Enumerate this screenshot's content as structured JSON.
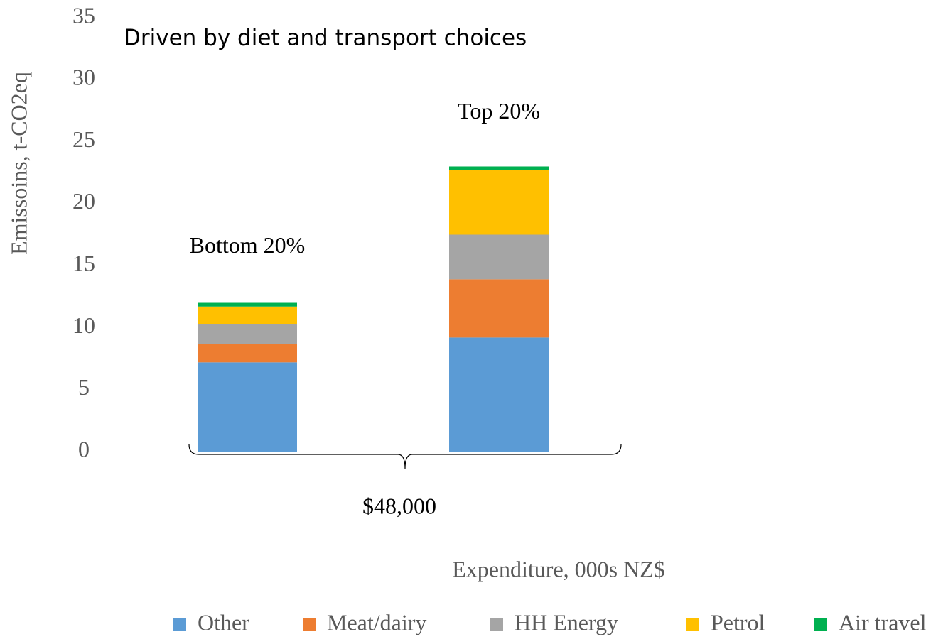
{
  "chart_data": {
    "type": "stacked_bar",
    "title": "Driven by diet and transport choices",
    "y_label": "Emissoins, t-CO2eq",
    "x_label": "Expenditure, 000s NZ$",
    "annotation": "$48,000",
    "categories": [
      "Bottom 20%",
      "Top 20%"
    ],
    "series": [
      {
        "name": "Other",
        "color": "#5b9bd5",
        "values": [
          7.2,
          9.2
        ]
      },
      {
        "name": "Meat/dairy",
        "color": "#ed7d31",
        "values": [
          1.5,
          4.7
        ]
      },
      {
        "name": "HH Energy",
        "color": "#a5a5a5",
        "values": [
          1.6,
          3.6
        ]
      },
      {
        "name": "Petrol",
        "color": "#ffc000",
        "values": [
          1.4,
          5.2
        ]
      },
      {
        "name": "Air travel",
        "color": "#00b050",
        "values": [
          0.3,
          0.3
        ]
      }
    ],
    "ylim": [
      0,
      35
    ],
    "yticks": [
      0,
      5,
      10,
      15,
      20,
      25,
      30,
      35
    ],
    "grid": false,
    "legend": "bottom"
  }
}
